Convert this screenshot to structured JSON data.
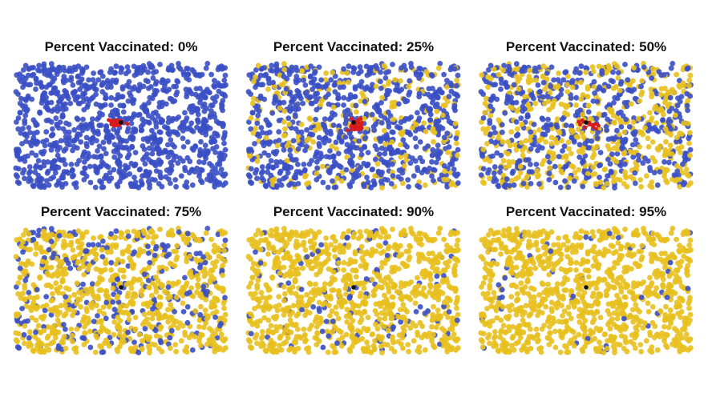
{
  "chart_data": [
    {
      "type": "scatter",
      "title": "Percent Vaccinated: 0%",
      "percent_vaccinated": 0,
      "series": [
        {
          "name": "",
          "role": "unvaccinated",
          "color": "#3a4fc4"
        },
        {
          "name": "",
          "role": "vaccinated",
          "color": "#e8c01e"
        },
        {
          "name": "",
          "role": "infected",
          "color": "#d81b1b"
        },
        {
          "name": "",
          "role": "initial-case",
          "color": "#111111"
        }
      ],
      "outbreak_extent": "small-cluster"
    },
    {
      "type": "scatter",
      "title": "Percent Vaccinated: 25%",
      "percent_vaccinated": 25,
      "series": [
        {
          "name": "",
          "role": "unvaccinated",
          "color": "#3a4fc4"
        },
        {
          "name": "",
          "role": "vaccinated",
          "color": "#e8c01e"
        },
        {
          "name": "",
          "role": "infected",
          "color": "#d81b1b"
        },
        {
          "name": "",
          "role": "initial-case",
          "color": "#111111"
        }
      ],
      "outbreak_extent": "small-cluster"
    },
    {
      "type": "scatter",
      "title": "Percent Vaccinated: 50%",
      "percent_vaccinated": 50,
      "series": [
        {
          "name": "",
          "role": "unvaccinated",
          "color": "#3a4fc4"
        },
        {
          "name": "",
          "role": "vaccinated",
          "color": "#e8c01e"
        },
        {
          "name": "",
          "role": "infected",
          "color": "#d81b1b"
        },
        {
          "name": "",
          "role": "initial-case",
          "color": "#111111"
        }
      ],
      "outbreak_extent": "tiny-cluster"
    },
    {
      "type": "scatter",
      "title": "Percent Vaccinated: 75%",
      "percent_vaccinated": 75,
      "series": [
        {
          "name": "",
          "role": "unvaccinated",
          "color": "#3a4fc4"
        },
        {
          "name": "",
          "role": "vaccinated",
          "color": "#e8c01e"
        },
        {
          "name": "",
          "role": "initial-case",
          "color": "#111111"
        }
      ],
      "outbreak_extent": "none"
    },
    {
      "type": "scatter",
      "title": "Percent Vaccinated: 90%",
      "percent_vaccinated": 90,
      "series": [
        {
          "name": "",
          "role": "unvaccinated",
          "color": "#3a4fc4"
        },
        {
          "name": "",
          "role": "vaccinated",
          "color": "#e8c01e"
        },
        {
          "name": "",
          "role": "initial-case",
          "color": "#111111"
        }
      ],
      "outbreak_extent": "none"
    },
    {
      "type": "scatter",
      "title": "Percent Vaccinated: 95%",
      "percent_vaccinated": 95,
      "series": [
        {
          "name": "",
          "role": "unvaccinated",
          "color": "#3a4fc4"
        },
        {
          "name": "",
          "role": "vaccinated",
          "color": "#e8c01e"
        },
        {
          "name": "",
          "role": "initial-case",
          "color": "#111111"
        }
      ],
      "outbreak_extent": "none"
    }
  ]
}
